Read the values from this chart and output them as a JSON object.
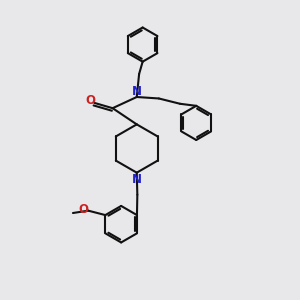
{
  "bg_color": "#e8e8eb",
  "bond_color": "#111111",
  "N_color": "#2222cc",
  "O_color": "#cc2222",
  "line_width": 1.5,
  "font_size": 8.5,
  "fig_size": [
    3.0,
    3.0
  ],
  "dpi": 100,
  "xlim": [
    0,
    10
  ],
  "ylim": [
    0,
    10
  ]
}
